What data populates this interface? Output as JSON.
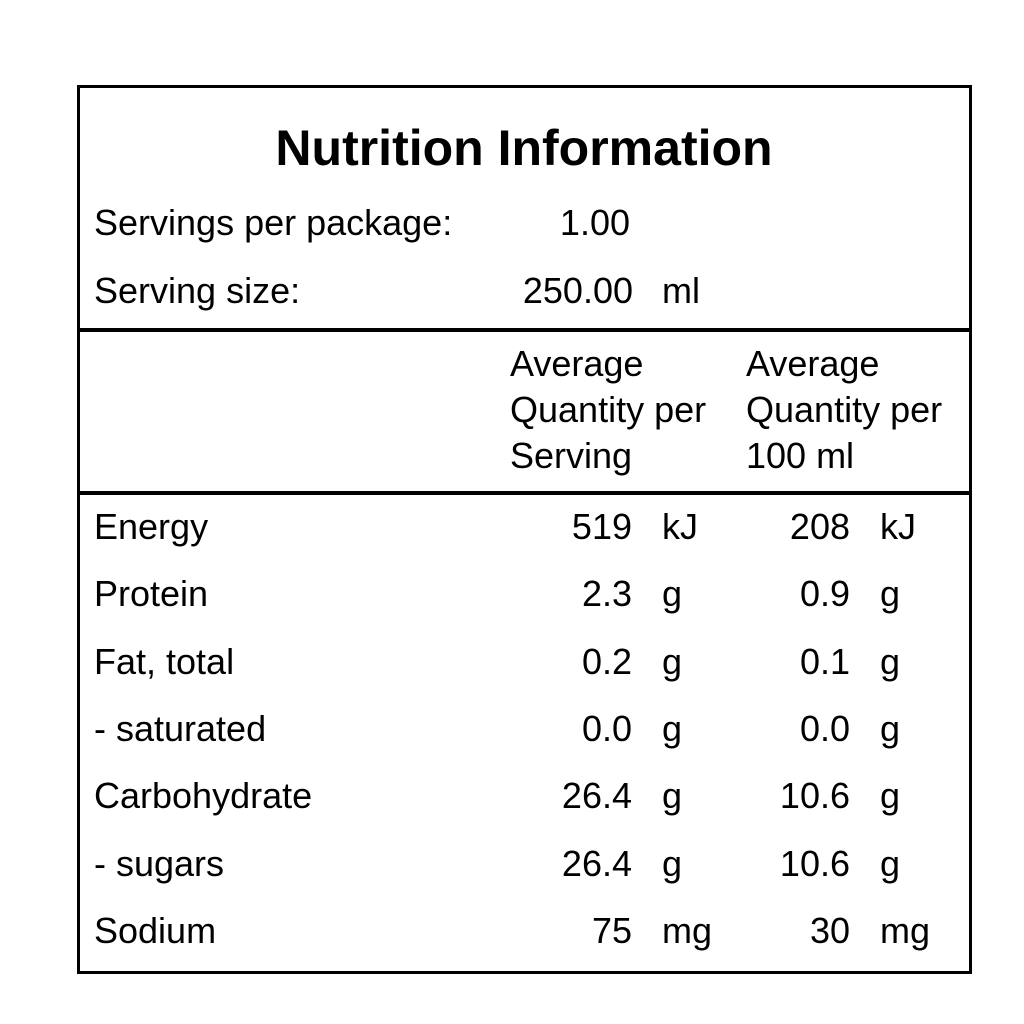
{
  "label": {
    "title": "Nutrition Information",
    "servings_per_package": {
      "label": "Servings per package:",
      "value": "1.00"
    },
    "serving_size": {
      "label": "Serving size:",
      "value": "250.00",
      "unit": "ml"
    },
    "columns": {
      "per_serving": [
        "Average",
        "Quantity per",
        "Serving"
      ],
      "per_100": [
        "Average",
        "Quantity per",
        "100 ml"
      ]
    },
    "rows": [
      {
        "name": "Energy",
        "serving_value": "519",
        "serving_unit": "kJ",
        "per100_value": "208",
        "per100_unit": "kJ"
      },
      {
        "name": "Protein",
        "serving_value": "2.3",
        "serving_unit": "g",
        "per100_value": "0.9",
        "per100_unit": "g"
      },
      {
        "name": "Fat, total",
        "serving_value": "0.2",
        "serving_unit": "g",
        "per100_value": "0.1",
        "per100_unit": "g"
      },
      {
        "name": "- saturated",
        "serving_value": "0.0",
        "serving_unit": "g",
        "per100_value": "0.0",
        "per100_unit": "g"
      },
      {
        "name": "Carbohydrate",
        "serving_value": "26.4",
        "serving_unit": "g",
        "per100_value": "10.6",
        "per100_unit": "g"
      },
      {
        "name": "- sugars",
        "serving_value": "26.4",
        "serving_unit": "g",
        "per100_value": "10.6",
        "per100_unit": "g"
      },
      {
        "name": "Sodium",
        "serving_value": "75",
        "serving_unit": "mg",
        "per100_value": "30",
        "per100_unit": "mg"
      }
    ]
  }
}
